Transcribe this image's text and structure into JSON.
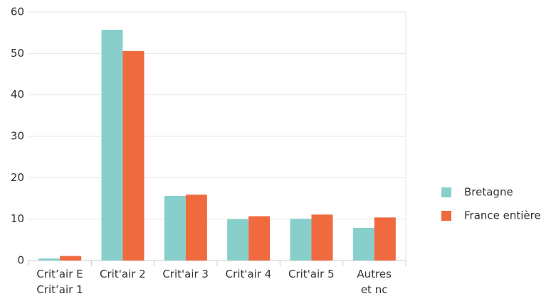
{
  "chart_data": {
    "type": "bar",
    "categories": [
      "Crit’air E\nCrit’air 1",
      "Crit'air 2",
      "Crit'air 3",
      "Crit'air 4",
      "Crit'air 5",
      "Autres\net nc"
    ],
    "series": [
      {
        "name": "Bretagne",
        "color": "#88cfcc",
        "values": [
          0.5,
          55.7,
          15.6,
          10.0,
          10.1,
          7.9
        ]
      },
      {
        "name": "France entière",
        "color": "#ef6a3f",
        "values": [
          1.1,
          50.6,
          15.9,
          10.7,
          11.1,
          10.4
        ]
      }
    ],
    "ylim": [
      0,
      60
    ],
    "yticks": [
      0,
      10,
      20,
      30,
      40,
      50,
      60
    ],
    "grid": true,
    "legend": "right"
  }
}
